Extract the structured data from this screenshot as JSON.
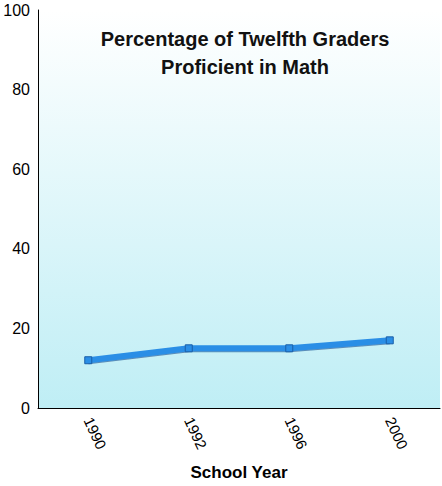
{
  "chart_data": {
    "type": "line",
    "title": "Percentage of Twelfth Graders\nProficient in Math",
    "x_label": "School Year",
    "categories": [
      "1990",
      "1992",
      "1996",
      "2000"
    ],
    "values": [
      12,
      15,
      15,
      17
    ],
    "color": "#2a8ee6",
    "marker": "square",
    "ylim": [
      0,
      100
    ],
    "yticks": [
      0,
      20,
      40,
      60,
      80,
      100
    ],
    "grid": false
  }
}
